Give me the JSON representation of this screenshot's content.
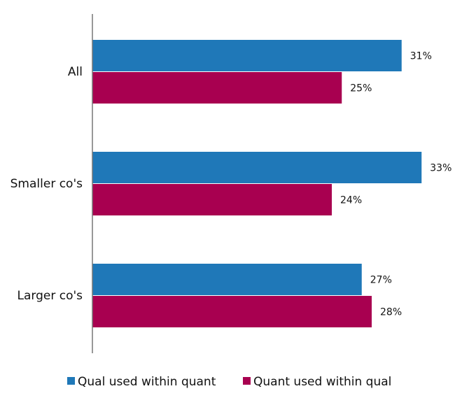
{
  "chart_data": {
    "type": "bar",
    "orientation": "horizontal",
    "title": "",
    "xlabel": "",
    "ylabel": "",
    "categories": [
      "All",
      "Smaller co's",
      "Larger co's"
    ],
    "series": [
      {
        "name": "Qual used within quant",
        "values": [
          31,
          33,
          27
        ],
        "color": "#1f78b8"
      },
      {
        "name": "Quant used within qual",
        "values": [
          25,
          24,
          28
        ],
        "color": "#a80050"
      }
    ],
    "value_suffix": "%",
    "xlim": [
      0,
      36
    ],
    "grid": false,
    "legend_position": "bottom"
  }
}
